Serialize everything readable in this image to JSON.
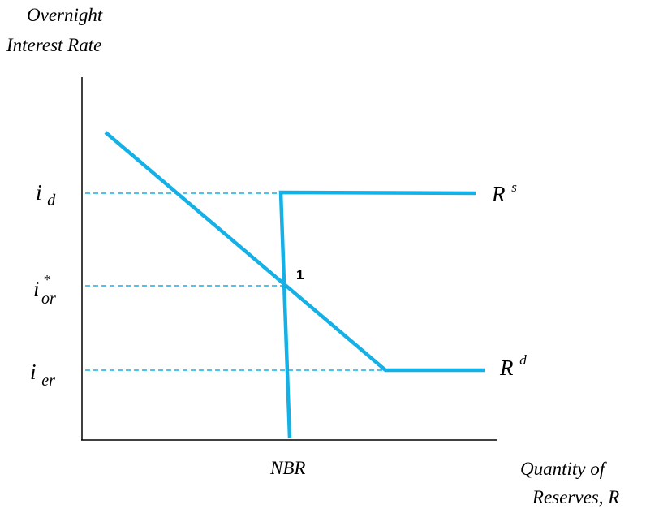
{
  "colors": {
    "curve": "#14b0e6",
    "guide": "#14b0e6",
    "axis": "#000000"
  },
  "y_axis_title": {
    "line1": "Overnight",
    "line2": "Interest Rate"
  },
  "x_axis_title": {
    "line1": "Quantity of",
    "line2": "Reserves, R"
  },
  "y_ticks": {
    "i_d": {
      "base": "i",
      "sub": "d"
    },
    "i_or": {
      "base": "i",
      "sup": "*",
      "sub": "or"
    },
    "i_er": {
      "base": "i",
      "sub": "er"
    }
  },
  "x_ticks": {
    "nbr": "NBR"
  },
  "curves": {
    "supply": {
      "base": "R",
      "sup": "s"
    },
    "demand": {
      "base": "R",
      "sup": "d"
    }
  },
  "points": {
    "equilibrium": "1"
  }
}
